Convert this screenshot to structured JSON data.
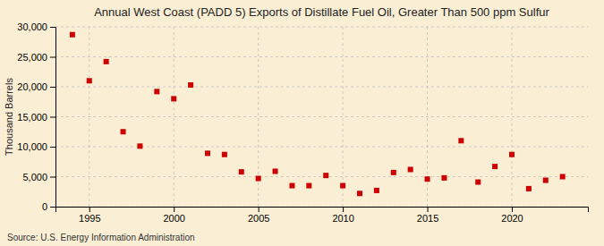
{
  "chart_data": {
    "type": "scatter",
    "title": "Annual West Coast (PADD 5) Exports of Distillate Fuel Oil, Greater Than 500 ppm Sulfur",
    "ylabel": "Thousand Barrels",
    "source": "Source: U.S. Energy Information Administration",
    "x": [
      1994,
      1995,
      1996,
      1997,
      1998,
      1999,
      2000,
      2001,
      2002,
      2003,
      2004,
      2005,
      2006,
      2007,
      2008,
      2009,
      2010,
      2011,
      2012,
      2013,
      2014,
      2015,
      2016,
      2017,
      2018,
      2019,
      2020,
      2021,
      2022,
      2023
    ],
    "values": [
      28700,
      21000,
      24200,
      12500,
      10100,
      19200,
      18000,
      20300,
      8900,
      8700,
      5800,
      4700,
      5900,
      3500,
      3500,
      5200,
      3500,
      2200,
      2700,
      5700,
      6200,
      4600,
      4800,
      11000,
      4100,
      6700,
      8700,
      3000,
      4400,
      5000
    ],
    "color": "#cc0000",
    "marker": "square",
    "xlim": [
      1993.0,
      2024.5
    ],
    "xticks": [
      1995,
      2000,
      2005,
      2010,
      2015,
      2020
    ],
    "ylim": [
      0,
      30000
    ],
    "yticks": [
      0,
      {
        "value": 5000,
        "label": "5,000"
      },
      {
        "value": 10000,
        "label": "10,000"
      },
      {
        "value": 15000,
        "label": "15,000"
      },
      {
        "value": 20000,
        "label": "20,000"
      },
      {
        "value": 25000,
        "label": "25,000"
      },
      {
        "value": 30000,
        "label": "30,000"
      }
    ],
    "grid": true
  }
}
